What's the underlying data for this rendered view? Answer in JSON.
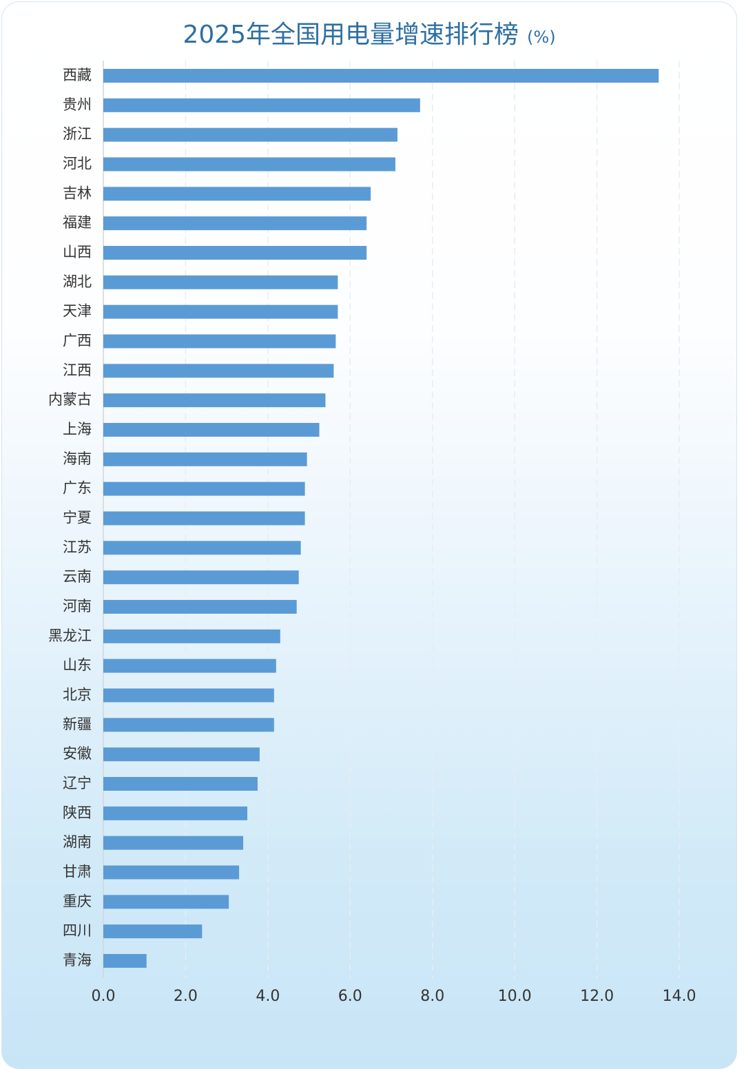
{
  "chart_data": {
    "type": "bar",
    "orientation": "horizontal",
    "title": "2025年全国用电量增速排行榜",
    "unit": "(%)",
    "categories": [
      "西藏",
      "贵州",
      "浙江",
      "河北",
      "吉林",
      "福建",
      "山西",
      "湖北",
      "天津",
      "广西",
      "江西",
      "内蒙古",
      "上海",
      "海南",
      "广东",
      "宁夏",
      "江苏",
      "云南",
      "河南",
      "黑龙江",
      "山东",
      "北京",
      "新疆",
      "安徽",
      "辽宁",
      "陕西",
      "湖南",
      "甘肃",
      "重庆",
      "四川",
      "青海"
    ],
    "values": [
      13.5,
      7.7,
      7.15,
      7.1,
      6.5,
      6.4,
      6.4,
      5.7,
      5.7,
      5.65,
      5.6,
      5.4,
      5.25,
      4.95,
      4.9,
      4.9,
      4.8,
      4.75,
      4.7,
      4.3,
      4.2,
      4.15,
      4.15,
      3.8,
      3.75,
      3.5,
      3.4,
      3.3,
      3.05,
      2.4,
      1.05
    ],
    "xlim": [
      0,
      14
    ],
    "xticks": [
      "0.0",
      "2.0",
      "4.0",
      "6.0",
      "8.0",
      "10.0",
      "12.0",
      "14.0"
    ],
    "grid": true,
    "bar_color": "#5b9bd5",
    "title_color": "#2e6fa3"
  }
}
